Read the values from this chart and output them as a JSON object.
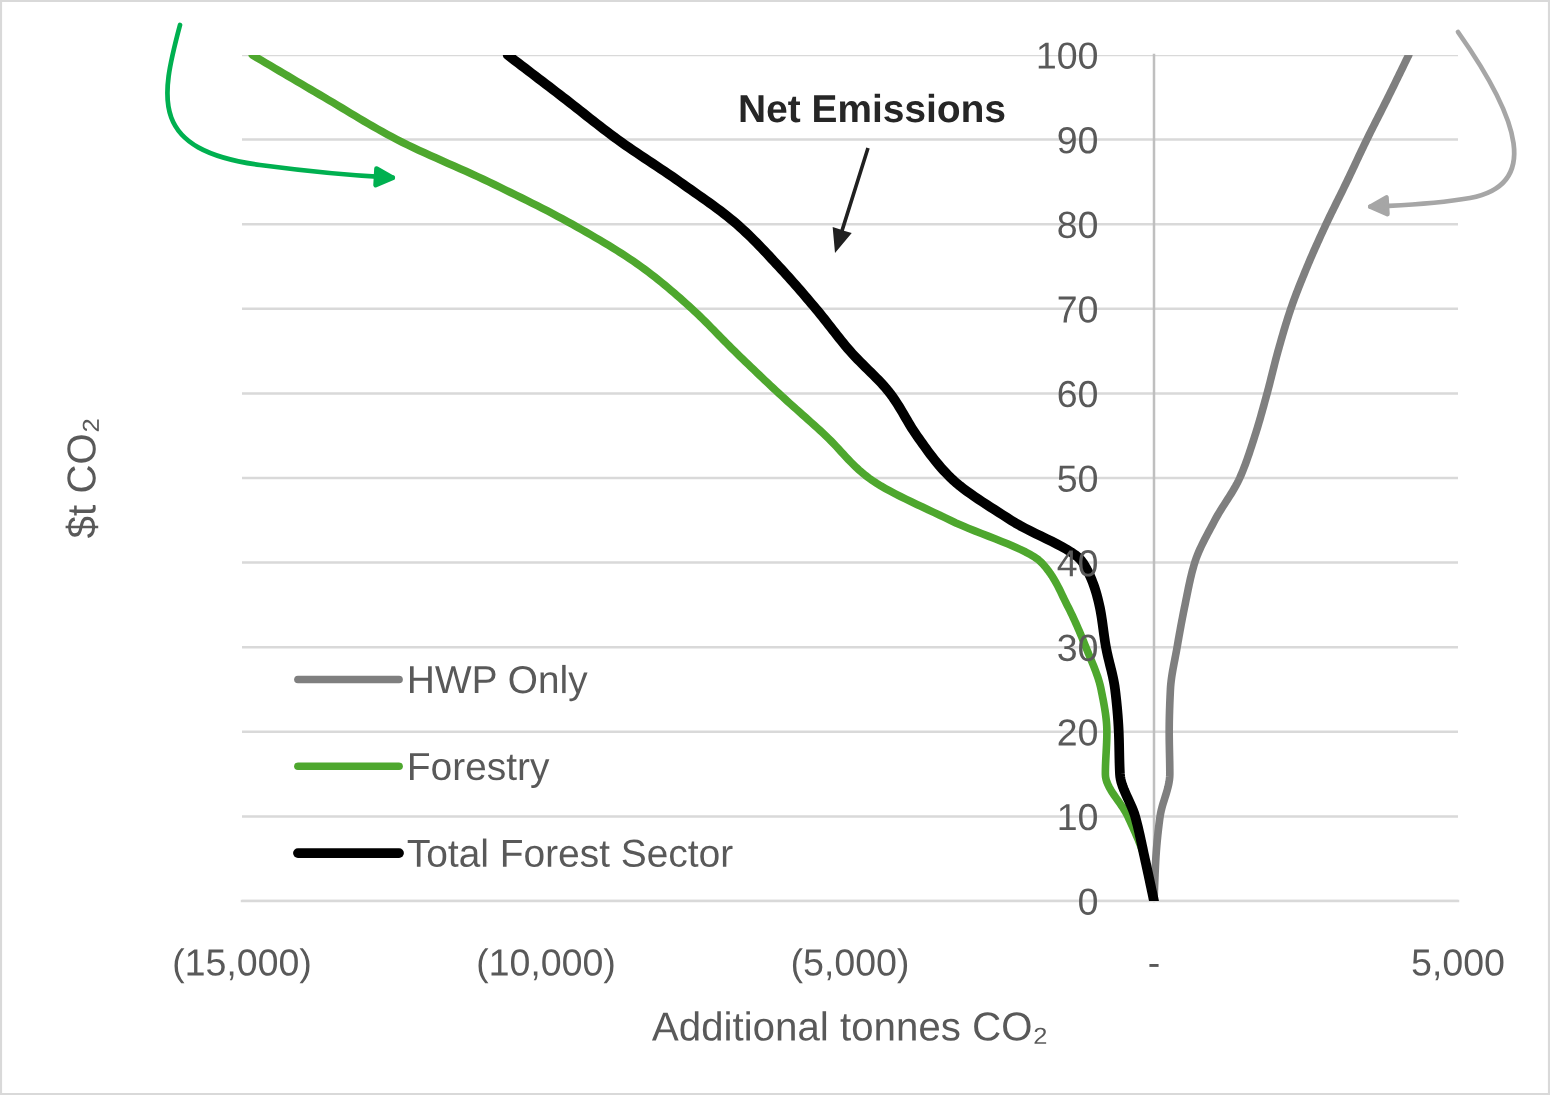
{
  "chart_data": {
    "type": "line",
    "xlabel": "Additional tonnes CO₂",
    "ylabel": "$t CO₂",
    "xlim": [
      -15000,
      5000
    ],
    "ylim": [
      0,
      100
    ],
    "xticks": [
      {
        "value": -15000,
        "label": "(15,000)"
      },
      {
        "value": -10000,
        "label": "(10,000)"
      },
      {
        "value": -5000,
        "label": "(5,000)"
      },
      {
        "value": 0,
        "label": "-"
      },
      {
        "value": 5000,
        "label": "5,000"
      }
    ],
    "yticks": [
      0,
      10,
      20,
      30,
      40,
      50,
      60,
      70,
      80,
      90,
      100
    ],
    "grid": "y",
    "legend": "bottom left",
    "series": [
      {
        "name": "HWP Only",
        "color": "#7f7f7f",
        "x": [
          0,
          30,
          100,
          260,
          250,
          270,
          380,
          510,
          670,
          1000,
          1410,
          1660,
          1860,
          2040,
          2250,
          2520,
          2830,
          3170,
          3500,
          3850,
          4190
        ],
        "values": [
          0,
          5,
          10,
          15,
          20,
          25,
          30,
          35,
          40,
          45,
          50,
          55,
          60,
          65,
          70,
          75,
          80,
          85,
          90,
          95,
          100
        ]
      },
      {
        "name": "Forestry",
        "color": "#4ea72e",
        "x": [
          0,
          -150,
          -430,
          -800,
          -775,
          -870,
          -1120,
          -1430,
          -1850,
          -3350,
          -4690,
          -5400,
          -6170,
          -6900,
          -7600,
          -8440,
          -9570,
          -10940,
          -12450,
          -13650,
          -14830
        ],
        "values": [
          0,
          5,
          10,
          15,
          20,
          25,
          30,
          35,
          40,
          45,
          50,
          55,
          60,
          65,
          70,
          75,
          80,
          85,
          90,
          95,
          100
        ]
      },
      {
        "name": "Total Forest Sector",
        "color": "#000000",
        "x": [
          0,
          -150,
          -310,
          -560,
          -580,
          -640,
          -790,
          -900,
          -1170,
          -2350,
          -3340,
          -3900,
          -4340,
          -5000,
          -5560,
          -6170,
          -6860,
          -7800,
          -8820,
          -9720,
          -10630
        ],
        "values": [
          0,
          5,
          10,
          15,
          20,
          25,
          30,
          35,
          40,
          45,
          50,
          55,
          60,
          65,
          70,
          75,
          80,
          85,
          90,
          95,
          100
        ]
      }
    ],
    "annotations": [
      "Net Emissions"
    ]
  }
}
